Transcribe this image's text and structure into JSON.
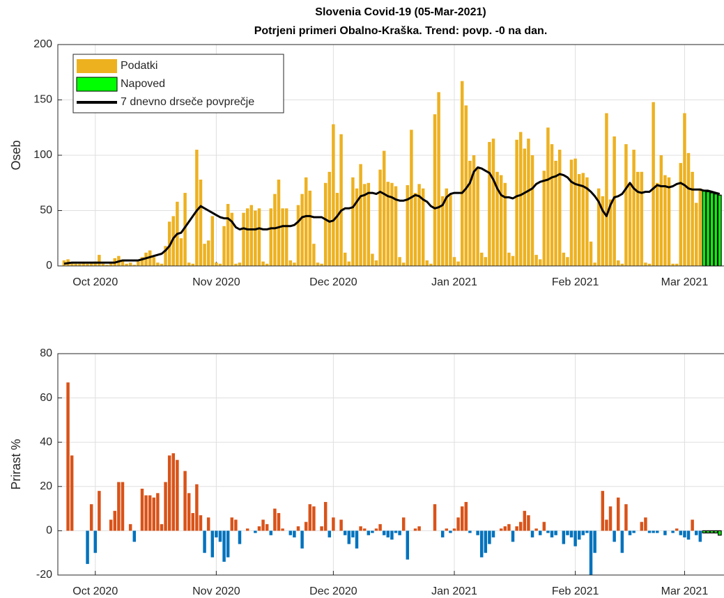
{
  "chart_data": [
    {
      "type": "bar",
      "title": "Slovenia Covid-19 (05-Mar-2021)",
      "subtitle": "Potrjeni primeri Obalno-Kraška. Trend: povp. -0 na dan.",
      "ylabel": "Oseb",
      "xlim": [
        -1.6,
        169.1
      ],
      "xticks": [
        {
          "value": 8,
          "label": "Oct 2020"
        },
        {
          "value": 39,
          "label": "Nov 2020"
        },
        {
          "value": 69,
          "label": "Dec 2020"
        },
        {
          "value": 100,
          "label": "Jan 2021"
        },
        {
          "value": 131,
          "label": "Feb 2021"
        },
        {
          "value": 159,
          "label": "Mar 2021"
        }
      ],
      "ylim": [
        0,
        200
      ],
      "yticks": [
        0,
        50,
        100,
        150,
        200
      ],
      "grid": true,
      "legend": "northwest",
      "series": [
        {
          "name": "Podatki",
          "color": "#edb120",
          "values": [
            5,
            6,
            3,
            2,
            2,
            3,
            2,
            3,
            4,
            10,
            2,
            1,
            3,
            7,
            9,
            5,
            2,
            3,
            1,
            4,
            8,
            12,
            14,
            8,
            3,
            2,
            18,
            40,
            45,
            58,
            25,
            66,
            3,
            2,
            105,
            78,
            20,
            23,
            45,
            3,
            2,
            36,
            56,
            48,
            2,
            3,
            48,
            52,
            55,
            50,
            52,
            4,
            2,
            52,
            65,
            78,
            52,
            52,
            5,
            3,
            55,
            65,
            80,
            68,
            20,
            3,
            2,
            75,
            85,
            128,
            66,
            119,
            12,
            4,
            80,
            70,
            92,
            74,
            75,
            11,
            5,
            87,
            104,
            76,
            75,
            72,
            8,
            3,
            73,
            123,
            66,
            74,
            70,
            5,
            2,
            137,
            157,
            63,
            70,
            65,
            8,
            4,
            167,
            145,
            95,
            100,
            88,
            12,
            8,
            112,
            115,
            85,
            82,
            75,
            12,
            9,
            114,
            121,
            106,
            115,
            100,
            10,
            6,
            86,
            125,
            110,
            95,
            105,
            12,
            8,
            96,
            97,
            83,
            84,
            80,
            22,
            3,
            70,
            63,
            138,
            60,
            117,
            5,
            2,
            110,
            75,
            105,
            85,
            85,
            3,
            2,
            148,
            75,
            100,
            82,
            80,
            2,
            2,
            93,
            138,
            102,
            85,
            57,
            70,
            null,
            null,
            null,
            null,
            null
          ]
        },
        {
          "name": "Napoved",
          "color": "#00ff00",
          "edgecolor": "#000000",
          "values": [
            null,
            null,
            null,
            null,
            null,
            null,
            null,
            null,
            null,
            null,
            null,
            null,
            null,
            null,
            null,
            null,
            null,
            null,
            null,
            null,
            null,
            null,
            null,
            null,
            null,
            null,
            null,
            null,
            null,
            null,
            null,
            null,
            null,
            null,
            null,
            null,
            null,
            null,
            null,
            null,
            null,
            null,
            null,
            null,
            null,
            null,
            null,
            null,
            null,
            null,
            null,
            null,
            null,
            null,
            null,
            null,
            null,
            null,
            null,
            null,
            null,
            null,
            null,
            null,
            null,
            null,
            null,
            null,
            null,
            null,
            null,
            null,
            null,
            null,
            null,
            null,
            null,
            null,
            null,
            null,
            null,
            null,
            null,
            null,
            null,
            null,
            null,
            null,
            null,
            null,
            null,
            null,
            null,
            null,
            null,
            null,
            null,
            null,
            null,
            null,
            null,
            null,
            null,
            null,
            null,
            null,
            null,
            null,
            null,
            null,
            null,
            null,
            null,
            null,
            null,
            null,
            null,
            null,
            null,
            null,
            null,
            null,
            null,
            null,
            null,
            null,
            null,
            null,
            null,
            null,
            null,
            null,
            null,
            null,
            null,
            null,
            null,
            null,
            null,
            null,
            null,
            null,
            null,
            null,
            null,
            null,
            null,
            null,
            null,
            null,
            null,
            null,
            null,
            null,
            null,
            null,
            null,
            null,
            null,
            null,
            null,
            null,
            null,
            null,
            68,
            67,
            66,
            65,
            64
          ]
        },
        {
          "name": "7 dnevno drseče povprečje",
          "type": "line",
          "color": "#000000",
          "values": [
            2,
            2.5,
            3,
            3,
            3,
            3,
            3,
            3,
            3,
            3,
            3,
            3,
            3,
            3,
            4,
            5,
            5,
            5,
            5,
            5,
            6,
            7,
            8,
            9,
            10,
            11,
            14,
            18,
            25,
            29,
            30,
            35,
            40,
            45,
            50,
            54,
            52,
            50,
            48,
            46,
            44,
            43,
            43,
            40,
            35,
            33,
            34,
            33,
            33,
            33,
            34,
            33,
            33,
            34,
            34,
            35,
            36,
            36,
            36,
            37,
            40,
            44,
            45,
            45,
            44,
            44,
            44,
            42,
            40,
            41,
            45,
            50,
            52,
            52,
            53,
            58,
            63,
            64,
            66,
            66,
            65,
            67,
            65,
            63,
            62,
            60,
            59,
            59,
            60,
            62,
            64,
            63,
            60,
            58,
            54,
            52,
            53,
            55,
            62,
            65,
            66,
            66,
            66,
            70,
            75,
            85,
            89,
            88,
            86,
            84,
            78,
            70,
            64,
            62,
            62,
            61,
            63,
            64,
            66,
            68,
            70,
            74,
            76,
            77,
            78,
            80,
            81,
            83,
            82,
            80,
            76,
            74,
            73,
            72,
            70,
            67,
            63,
            58,
            50,
            45,
            55,
            62,
            63,
            65,
            70,
            75,
            70,
            67,
            66,
            67,
            67,
            70,
            73,
            72,
            72,
            71,
            72,
            74,
            75,
            73,
            70,
            69,
            69,
            69,
            68,
            68,
            67,
            66,
            65
          ]
        }
      ]
    },
    {
      "type": "bar",
      "ylabel": "Prirast %",
      "xlim": [
        -1.6,
        169.1
      ],
      "xticks": [
        {
          "value": 8,
          "label": "Oct 2020"
        },
        {
          "value": 39,
          "label": "Nov 2020"
        },
        {
          "value": 69,
          "label": "Dec 2020"
        },
        {
          "value": 100,
          "label": "Jan 2021"
        },
        {
          "value": 131,
          "label": "Feb 2021"
        },
        {
          "value": 159,
          "label": "Mar 2021"
        }
      ],
      "ylim": [
        -20,
        80
      ],
      "yticks": [
        -20,
        0,
        20,
        40,
        60,
        80
      ],
      "grid": true,
      "series": [
        {
          "colors": {
            "positive": "#d95319",
            "negative": "#0072bd"
          },
          "values": [
            null,
            67,
            34,
            0,
            0,
            0,
            -15,
            12,
            -10,
            18,
            0,
            0,
            5,
            9,
            22,
            22,
            0,
            3,
            -5,
            0,
            19,
            16,
            16,
            15,
            17,
            3,
            22,
            34,
            35,
            32,
            0,
            27,
            17,
            8,
            21,
            7,
            -10,
            6,
            -12,
            -3,
            -5,
            -14,
            -12,
            6,
            5,
            -6,
            0,
            1,
            0,
            -1,
            2,
            5,
            3,
            -2,
            10,
            8,
            1,
            0,
            -2,
            -3,
            2,
            -8,
            4,
            12,
            11,
            0,
            2,
            13,
            -3,
            6,
            0,
            5,
            -2,
            -6,
            -3,
            -8,
            2,
            1,
            -2,
            -1,
            1,
            3,
            -2,
            -3,
            -4,
            -1,
            -2,
            6,
            -13,
            0,
            1,
            2,
            0,
            0,
            0,
            12,
            0,
            -3,
            1,
            -1,
            1,
            6,
            11,
            13,
            -1,
            0,
            -2,
            -12,
            -10,
            -6,
            -3,
            0,
            1,
            2,
            3,
            -5,
            2,
            4,
            9,
            7,
            -3,
            1,
            -2,
            4,
            -1,
            -3,
            -2,
            0,
            -6,
            -2,
            -3,
            -7,
            -4,
            -2,
            -1,
            -20,
            -10,
            0,
            18,
            5,
            11,
            -5,
            15,
            -10,
            12,
            -2,
            -1,
            0,
            4,
            6,
            -1,
            -1,
            -1,
            0,
            -2,
            0,
            -1,
            1,
            -2,
            -3,
            -4,
            5,
            -2,
            -5,
            null,
            null,
            null,
            null,
            null
          ]
        },
        {
          "color": "#00ff00",
          "edgecolor": "#000000",
          "values": [
            null,
            null,
            null,
            null,
            null,
            null,
            null,
            null,
            null,
            null,
            null,
            null,
            null,
            null,
            null,
            null,
            null,
            null,
            null,
            null,
            null,
            null,
            null,
            null,
            null,
            null,
            null,
            null,
            null,
            null,
            null,
            null,
            null,
            null,
            null,
            null,
            null,
            null,
            null,
            null,
            null,
            null,
            null,
            null,
            null,
            null,
            null,
            null,
            null,
            null,
            null,
            null,
            null,
            null,
            null,
            null,
            null,
            null,
            null,
            null,
            null,
            null,
            null,
            null,
            null,
            null,
            null,
            null,
            null,
            null,
            null,
            null,
            null,
            null,
            null,
            null,
            null,
            null,
            null,
            null,
            null,
            null,
            null,
            null,
            null,
            null,
            null,
            null,
            null,
            null,
            null,
            null,
            null,
            null,
            null,
            null,
            null,
            null,
            null,
            null,
            null,
            null,
            null,
            null,
            null,
            null,
            null,
            null,
            null,
            null,
            null,
            null,
            null,
            null,
            null,
            null,
            null,
            null,
            null,
            null,
            null,
            null,
            null,
            null,
            null,
            null,
            null,
            null,
            null,
            null,
            null,
            null,
            null,
            null,
            null,
            null,
            null,
            null,
            null,
            null,
            null,
            null,
            null,
            null,
            null,
            null,
            null,
            null,
            null,
            null,
            null,
            null,
            null,
            null,
            null,
            null,
            null,
            null,
            null,
            null,
            null,
            null,
            null,
            null,
            -1,
            -1,
            -1,
            -1,
            -2
          ]
        }
      ]
    }
  ]
}
